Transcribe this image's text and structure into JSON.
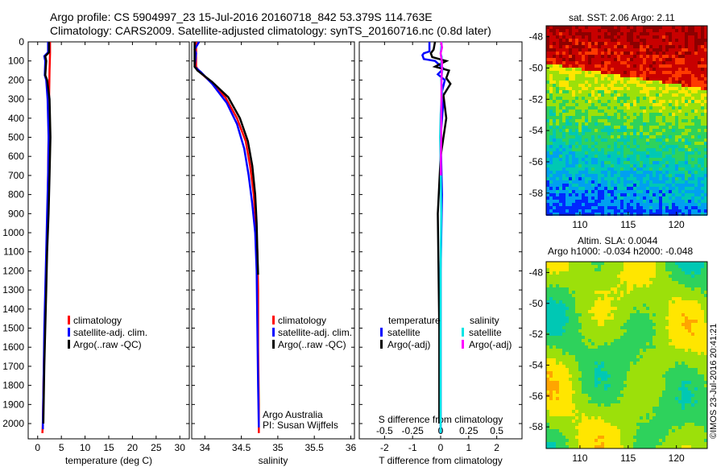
{
  "header": {
    "line1": "Argo profile: CS 5904997_23 15-Jul-2016 20160718_842 53.379S 114.763E",
    "line2": "Climatology: CARS2009. Satellite-adjusted climatology: synTS_20160716.nc (0.8d later)"
  },
  "credit": "Argo Australia",
  "pi": "PI: Susan Wijffels",
  "stamp": "©IMOS 23-Jul-2016 20:41:21",
  "colors": {
    "red": "#ff0000",
    "blue": "#0000ff",
    "black": "#000000",
    "cyan": "#00e5e5",
    "magenta": "#ff00ff"
  },
  "chart_data": [
    {
      "type": "line",
      "xlabel": "temperature (deg C)",
      "ylabel": "",
      "xlim": [
        -2,
        32
      ],
      "ylim": [
        2080,
        0
      ],
      "x_ticks": [
        0,
        5,
        10,
        15,
        20,
        25,
        30
      ],
      "y_ticks": [
        0,
        100,
        200,
        300,
        400,
        500,
        600,
        700,
        800,
        900,
        1000,
        1100,
        1200,
        1300,
        1400,
        1500,
        1600,
        1700,
        1800,
        1900,
        2000
      ],
      "legend": [
        "climatology",
        "satellite-adj. clim.",
        "Argo(..raw -QC)"
      ],
      "series": [
        {
          "name": "climatology",
          "color": "red",
          "x": [
            2.6,
            2.6,
            2.5,
            2.4,
            2.3,
            2.2,
            2.1,
            1.9,
            1.7,
            1.5,
            1.3,
            1.2,
            1.1,
            1.0
          ],
          "y": [
            0,
            60,
            150,
            300,
            500,
            700,
            900,
            1100,
            1300,
            1500,
            1700,
            1850,
            2000,
            2050
          ]
        },
        {
          "name": "satellite-adj. clim.",
          "color": "blue",
          "x": [
            2.2,
            2.2,
            1.4,
            1.6,
            1.5,
            1.8,
            2.1,
            2.3,
            2.2,
            2.0,
            1.8,
            1.6,
            1.4,
            1.3,
            1.2,
            1.1,
            1.1
          ],
          "y": [
            0,
            55,
            75,
            100,
            175,
            200,
            300,
            500,
            700,
            900,
            1100,
            1300,
            1500,
            1700,
            1850,
            2000,
            2030
          ]
        },
        {
          "name": "Argo(..raw -QC)",
          "color": "black",
          "x": [
            2.4,
            2.4,
            1.6,
            1.8,
            1.6,
            2.0,
            2.5,
            2.7,
            2.5,
            2.3,
            2.0,
            1.8,
            1.6,
            1.4,
            1.3,
            1.2
          ],
          "y": [
            0,
            55,
            75,
            100,
            175,
            200,
            300,
            500,
            700,
            900,
            1100,
            1300,
            1500,
            1700,
            1850,
            2000
          ]
        }
      ]
    },
    {
      "type": "line",
      "xlabel": "salinity",
      "ylabel": "",
      "xlim": [
        33.82,
        36.05
      ],
      "ylim": [
        2080,
        0
      ],
      "x_ticks": [
        34,
        34.5,
        35,
        35.5,
        36
      ],
      "legend": [
        "climatology",
        "satellite-adj. clim.",
        "Argo(..raw -QC)"
      ],
      "series": [
        {
          "name": "climatology",
          "color": "red",
          "x": [
            33.88,
            33.88,
            33.92,
            34.08,
            34.28,
            34.44,
            34.56,
            34.62,
            34.67,
            34.7,
            34.72,
            34.73,
            34.73,
            34.74,
            34.74
          ],
          "y": [
            0,
            130,
            155,
            210,
            290,
            400,
            520,
            650,
            800,
            950,
            1100,
            1300,
            1600,
            1900,
            2050
          ]
        },
        {
          "name": "satellite-adj. clim.",
          "color": "blue",
          "x": [
            33.92,
            33.86,
            33.88,
            33.86,
            33.95,
            34.1,
            34.3,
            34.44,
            34.54,
            34.6,
            34.65,
            34.69,
            34.71,
            34.72,
            34.73,
            34.74
          ],
          "y": [
            0,
            40,
            60,
            130,
            160,
            220,
            320,
            430,
            560,
            700,
            850,
            1000,
            1200,
            1500,
            1800,
            2020
          ]
        },
        {
          "name": "Argo(..raw -QC)",
          "color": "black",
          "x": [
            33.86,
            33.86,
            33.9,
            34.1,
            34.32,
            34.48,
            34.59,
            34.65,
            34.69,
            34.71,
            34.72,
            34.73
          ],
          "y": [
            0,
            130,
            150,
            210,
            290,
            400,
            520,
            650,
            800,
            950,
            1100,
            1220
          ]
        }
      ]
    },
    {
      "type": "line",
      "xlabel": "T difference from climatology",
      "x2label": "S difference from climatology",
      "ylabel": "",
      "xlim": [
        -2.9,
        2.9
      ],
      "ylim": [
        2080,
        0
      ],
      "x_ticks": [
        -2,
        -1,
        0,
        1,
        2
      ],
      "x2lim": [
        -0.725,
        0.725
      ],
      "x2_ticks": [
        -0.5,
        -0.25,
        0,
        0.25,
        0.5
      ],
      "legend_groups": [
        {
          "title": "temperature",
          "items": [
            "satellite",
            "Argo(-adj)"
          ]
        },
        {
          "title": "salinity",
          "items": [
            "satellite",
            "Argo(-adj)"
          ]
        }
      ],
      "series": [
        {
          "name": "satellite",
          "group": "temperature",
          "color": "blue",
          "x": [
            -0.4,
            -0.4,
            -0.6,
            -0.65,
            -0.6,
            -0.2,
            0.1,
            -0.1,
            0.15,
            0.05,
            0.1,
            0.0,
            0.05,
            0.0,
            0.0,
            0.0
          ],
          "y": [
            0,
            50,
            60,
            70,
            90,
            100,
            140,
            170,
            200,
            260,
            300,
            500,
            800,
            1200,
            1800,
            2050
          ]
        },
        {
          "name": "Argo(-adj)",
          "group": "temperature",
          "color": "black",
          "x": [
            -0.2,
            -0.25,
            -0.35,
            -0.3,
            0.2,
            -0.2,
            0.3,
            0.2,
            0.35,
            0.1,
            0.2,
            0.0,
            -0.1,
            -0.05,
            -0.05
          ],
          "y": [
            0,
            40,
            60,
            80,
            100,
            130,
            150,
            190,
            220,
            280,
            400,
            600,
            900,
            1500,
            2000
          ]
        },
        {
          "name": "satellite",
          "group": "salinity",
          "color": "cyan",
          "x": [
            0.04,
            0.0,
            0.04,
            0.02,
            0.06,
            0.02,
            0.05,
            0.0,
            -0.02,
            0.01,
            0.02,
            0.0,
            0.0
          ],
          "y": [
            0,
            60,
            80,
            110,
            150,
            200,
            260,
            380,
            500,
            700,
            900,
            1200,
            2050
          ]
        },
        {
          "name": "Argo(-adj)",
          "group": "salinity",
          "color": "magenta",
          "x": [
            0.02,
            0.05,
            0.0,
            0.03,
            0.05,
            0.04,
            0.03,
            0.03,
            0.02,
            0.02,
            0.01,
            0.01
          ],
          "y": [
            0,
            30,
            60,
            90,
            110,
            160,
            220,
            300,
            400,
            500,
            600,
            700
          ]
        }
      ]
    },
    {
      "type": "heatmap",
      "title": "sat. SST: 2.06  Argo: 2.11",
      "xlim": [
        106.5,
        123.2
      ],
      "ylim": [
        -59.4,
        -47.3
      ],
      "x_ticks": [
        110,
        115,
        120
      ],
      "y_ticks": [
        -48,
        -50,
        -52,
        -54,
        -56,
        -58
      ],
      "colors": [
        "#0028ff",
        "#00a0f0",
        "#00c8b4",
        "#2ed25c",
        "#9ce00a",
        "#ffe600",
        "#ffa500",
        "#ff3a00",
        "#c80000",
        "#8c0000"
      ]
    },
    {
      "type": "heatmap",
      "title": "Altim. SLA: 0.0044",
      "subtitle": "Argo h1000: -0.034 h2000: -0.048",
      "xlim": [
        106.5,
        123.2
      ],
      "ylim": [
        -59.4,
        -47.3
      ],
      "x_ticks": [
        110,
        115,
        120
      ],
      "y_ticks": [
        -48,
        -50,
        -52,
        -54,
        -56,
        -58
      ],
      "colors": [
        "#00c8b4",
        "#2ed25c",
        "#9ce00a",
        "#ffe600",
        "#ffa500"
      ]
    }
  ]
}
